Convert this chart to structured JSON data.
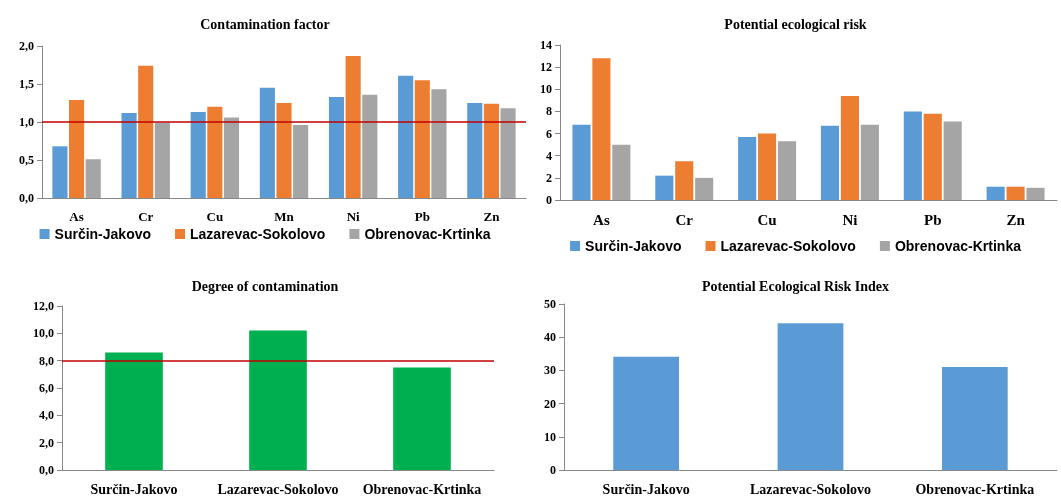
{
  "chart_data": [
    {
      "type": "bar",
      "title": "Contamination factor",
      "categories": [
        "As",
        "Cr",
        "Cu",
        "Mn",
        "Ni",
        "Pb",
        "Zn"
      ],
      "series": [
        {
          "name": "Surčin-Jakovo",
          "color": "#5b9bd5",
          "values": [
            0.68,
            1.12,
            1.13,
            1.45,
            1.33,
            1.61,
            1.25
          ]
        },
        {
          "name": "Lazarevac-Sokolovo",
          "color": "#ed7d31",
          "values": [
            1.29,
            1.74,
            1.2,
            1.25,
            1.87,
            1.55,
            1.24
          ]
        },
        {
          "name": "Obrenovac-Krtinka",
          "color": "#a5a5a5",
          "values": [
            0.51,
            0.99,
            1.06,
            0.96,
            1.36,
            1.43,
            1.18
          ]
        }
      ],
      "ylim": [
        0,
        2
      ],
      "yticks": [
        {
          "value": 0,
          "label": "0,0"
        },
        {
          "value": 0.5,
          "label": "0,5"
        },
        {
          "value": 1,
          "label": "1,0"
        },
        {
          "value": 1.5,
          "label": "1,5"
        },
        {
          "value": 2,
          "label": "2,0"
        }
      ],
      "ref_lines": [
        {
          "axis": "y",
          "value": 1,
          "color": "#c00000"
        }
      ],
      "legend": "bottom",
      "grid": false
    },
    {
      "type": "bar",
      "title": "Potential ecological risk",
      "categories": [
        "As",
        "Cr",
        "Cu",
        "Ni",
        "Pb",
        "Zn"
      ],
      "series": [
        {
          "name": "Surčin-Jakovo",
          "color": "#5b9bd5",
          "values": [
            6.8,
            2.2,
            5.7,
            6.7,
            8.0,
            1.2
          ]
        },
        {
          "name": "Lazarevac-Sokolovo",
          "color": "#ed7d31",
          "values": [
            12.8,
            3.5,
            6.0,
            9.4,
            7.8,
            1.2
          ]
        },
        {
          "name": "Obrenovac-Krtinka",
          "color": "#a5a5a5",
          "values": [
            5.0,
            2.0,
            5.3,
            6.8,
            7.1,
            1.1
          ]
        }
      ],
      "ylim": [
        0,
        14
      ],
      "yticks": [
        0,
        2,
        4,
        6,
        8,
        10,
        12,
        14
      ],
      "legend": "bottom",
      "grid": false
    },
    {
      "type": "bar",
      "title": "Degree of contamination",
      "categories": [
        "Surčin-Jakovo",
        "Lazarevac-Sokolovo",
        "Obrenovac-Krtinka"
      ],
      "series": [
        {
          "color": "#00b050",
          "values": [
            8.6,
            10.2,
            7.5
          ]
        }
      ],
      "ylim": [
        0,
        12
      ],
      "yticks": [
        {
          "value": 0,
          "label": "0,0"
        },
        {
          "value": 2,
          "label": "2,0"
        },
        {
          "value": 4,
          "label": "4,0"
        },
        {
          "value": 6,
          "label": "6,0"
        },
        {
          "value": 8,
          "label": "8,0"
        },
        {
          "value": 10,
          "label": "10,0"
        },
        {
          "value": 12,
          "label": "12,0"
        }
      ],
      "ref_lines": [
        {
          "axis": "y",
          "value": 8,
          "color": "#c00000"
        }
      ],
      "grid": false
    },
    {
      "type": "bar",
      "title": "Potential Ecological Risk Index",
      "categories": [
        "Surčin-Jakovo",
        "Lazarevac-Sokolovo",
        "Obrenovac-Krtinka"
      ],
      "series": [
        {
          "color": "#5b9bd5",
          "values": [
            34.1,
            44.2,
            31.0
          ]
        }
      ],
      "ylim": [
        0,
        50
      ],
      "yticks": [
        0,
        10,
        20,
        30,
        40,
        50
      ],
      "grid": false
    }
  ]
}
